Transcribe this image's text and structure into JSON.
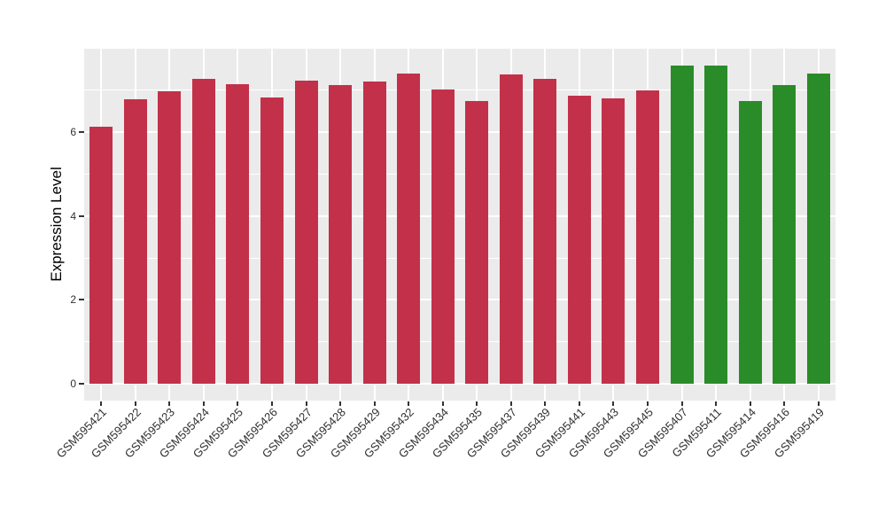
{
  "chart_data": {
    "type": "bar",
    "title": "",
    "xlabel": "",
    "ylabel": "Expression Level",
    "legend": "none",
    "grid": true,
    "panel_background": "#EBEBEB",
    "grid_color": "#FFFFFF",
    "axis_text_color": "#303030",
    "tick_color": "#333333",
    "yticks": [
      0,
      2,
      4,
      6
    ],
    "minor_yticks": [
      1,
      3,
      5,
      7
    ],
    "ylim": [
      -0.4,
      7.99
    ],
    "categories": [
      "GSM595421",
      "GSM595422",
      "GSM595423",
      "GSM595424",
      "GSM595425",
      "GSM595426",
      "GSM595427",
      "GSM595428",
      "GSM595429",
      "GSM595432",
      "GSM595434",
      "GSM595435",
      "GSM595437",
      "GSM595439",
      "GSM595441",
      "GSM595443",
      "GSM595445",
      "GSM595407",
      "GSM595411",
      "GSM595414",
      "GSM595416",
      "GSM595419"
    ],
    "values": [
      6.13,
      6.79,
      6.97,
      7.27,
      7.15,
      6.83,
      7.23,
      7.12,
      7.2,
      7.4,
      7.02,
      6.74,
      7.38,
      7.28,
      6.88,
      6.81,
      7.0,
      7.59,
      7.59,
      6.74,
      7.12,
      7.4
    ],
    "groups": [
      "red",
      "red",
      "red",
      "red",
      "red",
      "red",
      "red",
      "red",
      "red",
      "red",
      "red",
      "red",
      "red",
      "red",
      "red",
      "red",
      "red",
      "green",
      "green",
      "green",
      "green",
      "green"
    ],
    "group_colors": {
      "red": "#C23149",
      "green": "#2A8C28"
    }
  }
}
